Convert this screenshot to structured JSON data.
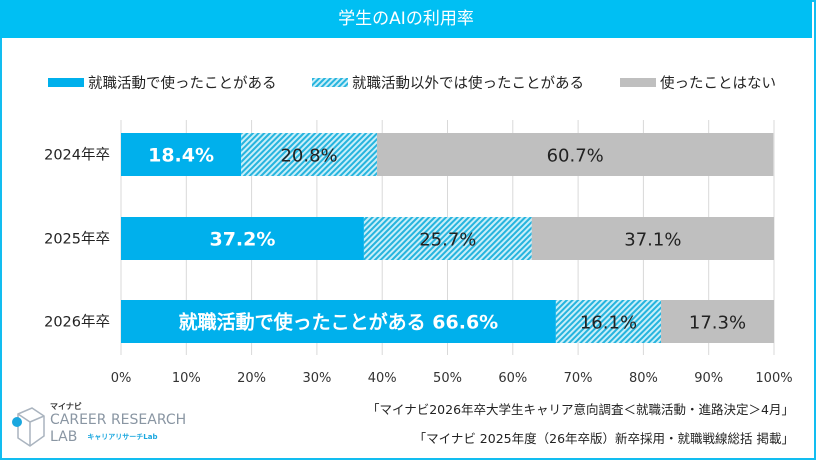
{
  "title": "学生のAIの利用率",
  "chart_data": {
    "type": "bar",
    "orientation": "horizontal-stacked-100",
    "title": "学生のAIの利用率",
    "categories": [
      "2024年卒",
      "2025年卒",
      "2026年卒"
    ],
    "series": [
      {
        "name": "就職活動で使ったことがある",
        "values": [
          18.4,
          37.2,
          66.6
        ],
        "color": "#00b0ec",
        "pattern": "solid"
      },
      {
        "name": "就職活動以外では使ったことがある",
        "values": [
          20.8,
          25.7,
          16.1
        ],
        "color": "#3fbadf",
        "pattern": "hatched"
      },
      {
        "name": "使ったことはない",
        "values": [
          60.7,
          37.1,
          17.3
        ],
        "color": "#bfbfbf",
        "pattern": "solid"
      }
    ],
    "data_labels": [
      [
        "18.4%",
        "20.8%",
        "60.7%"
      ],
      [
        "37.2%",
        "25.7%",
        "37.1%"
      ],
      [
        "就職活動で使ったことがある 66.6%",
        "16.1%",
        "17.3%"
      ]
    ],
    "xlim": [
      0,
      100
    ],
    "xticks": [
      "0%",
      "10%",
      "20%",
      "30%",
      "40%",
      "50%",
      "60%",
      "70%",
      "80%",
      "90%",
      "100%"
    ],
    "grid": true,
    "legend": "top"
  },
  "sources": [
    "「マイナビ2026年卒大学生キャリア意向調査＜就職活動・進路決定＞4月」",
    "「マイナビ 2025年度（26年卒版）新卒採用・就職戦線総括 掲載」"
  ],
  "logo": {
    "brand": "マイナビ",
    "line1": "CAREER RESEARCH",
    "line2": "LAB",
    "sub": "キャリアリサーチLab"
  }
}
